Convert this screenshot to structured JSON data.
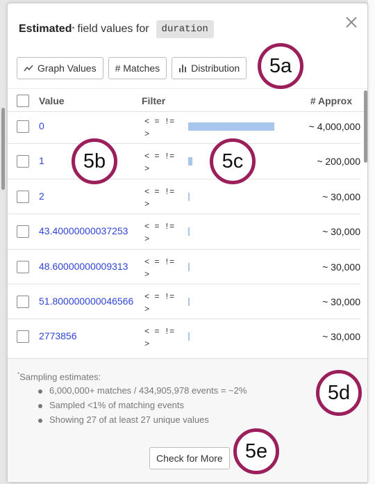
{
  "header": {
    "title_bold": "Estimated",
    "title_sup": "*",
    "title_rest": "field values for",
    "field_name": "duration",
    "close_icon": "close-icon"
  },
  "toolbar": {
    "buttons": [
      {
        "label": "Graph Values",
        "icon": "trend-line-icon"
      },
      {
        "label": "# Matches",
        "icon": ""
      },
      {
        "label": "Distribution",
        "icon": "bar-chart-icon"
      }
    ]
  },
  "table": {
    "columns": {
      "value": "Value",
      "filter": "Filter",
      "approx": "# Approx"
    },
    "rows": [
      {
        "value": "0",
        "ops_line1": "< = !=",
        "ops_line2": ">",
        "approx": "~ 4,000,000",
        "share": 1.0
      },
      {
        "value": "1",
        "ops_line1": "< = !=",
        "ops_line2": ">",
        "approx": "~ 200,000",
        "share": 0.05
      },
      {
        "value": "2",
        "ops_line1": "< = !=",
        "ops_line2": ">",
        "approx": "~ 30,000",
        "share": 0.0075
      },
      {
        "value": "43.40000000037253",
        "ops_line1": "< = !=",
        "ops_line2": ">",
        "approx": "~ 30,000",
        "share": 0.0075
      },
      {
        "value": "48.60000000009313",
        "ops_line1": "< = !=",
        "ops_line2": ">",
        "approx": "~ 30,000",
        "share": 0.0075
      },
      {
        "value": "51.800000000046566",
        "ops_line1": "< = !=",
        "ops_line2": ">",
        "approx": "~ 30,000",
        "share": 0.0075
      },
      {
        "value": "2773856",
        "ops_line1": "< = !=",
        "ops_line2": ">",
        "approx": "~ 30,000",
        "share": 0.0075
      }
    ]
  },
  "footer": {
    "sampling_title": "Sampling estimates:",
    "sampling_sup": "*",
    "notes": [
      "6,000,000+ matches / 434,905,978 events = ~2%",
      "Sampled <1% of matching events",
      "Showing 27 of at least 27 unique values"
    ],
    "check_more_label": "Check for More"
  },
  "callouts": [
    "5a",
    "5b",
    "5c",
    "5d",
    "5e"
  ],
  "colors": {
    "accent_link": "#2f45d6",
    "bar": "#a9c6ec",
    "callout_ring": "#9b1f5b"
  }
}
